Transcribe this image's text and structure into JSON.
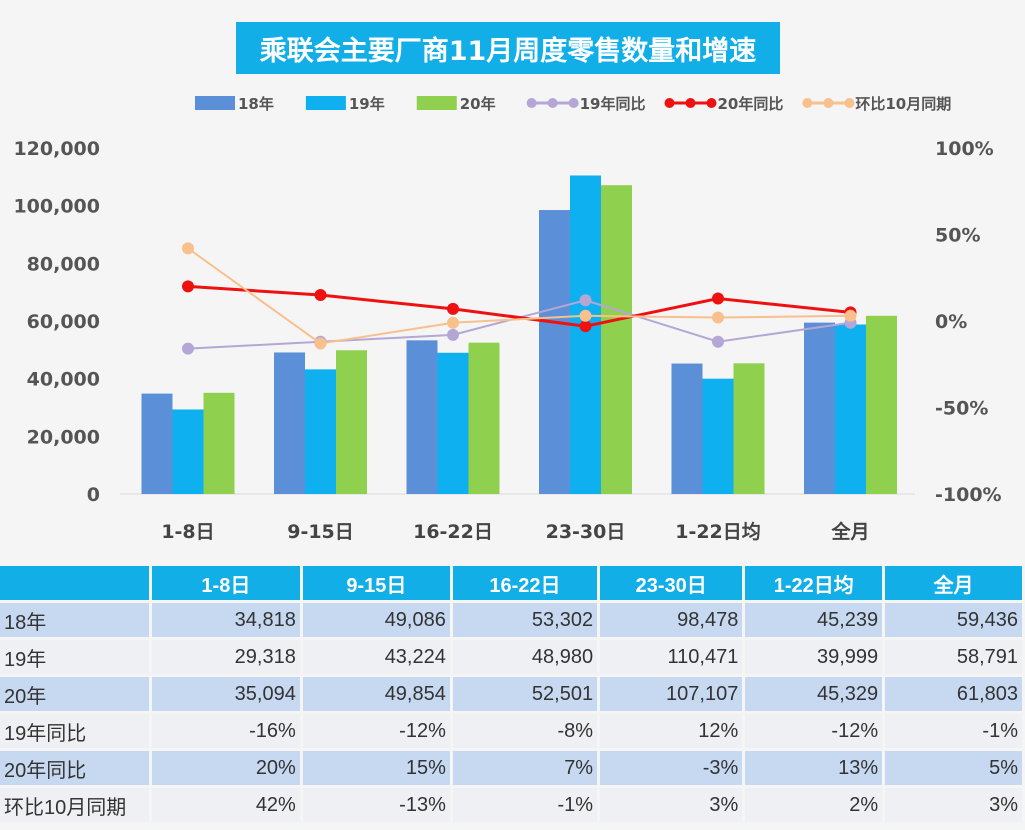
{
  "chart_data": {
    "type": "bar",
    "title": "乘联会主要厂商11月周度零售数量和增速",
    "categories": [
      "1-8日",
      "9-15日",
      "16-22日",
      "23-30日",
      "1-22日均",
      "全月"
    ],
    "series": [
      {
        "name": "18年",
        "kind": "bar",
        "axis": "left",
        "color": "#5b8fd8",
        "values": [
          34818,
          49086,
          53302,
          98478,
          45239,
          59436
        ]
      },
      {
        "name": "19年",
        "kind": "bar",
        "axis": "left",
        "color": "#0fb0ef",
        "values": [
          29318,
          43224,
          48980,
          110471,
          39999,
          58791
        ]
      },
      {
        "name": "20年",
        "kind": "bar",
        "axis": "left",
        "color": "#8fd14f",
        "values": [
          35094,
          49854,
          52501,
          107107,
          45329,
          61803
        ]
      },
      {
        "name": "19年同比",
        "kind": "line",
        "axis": "right",
        "color": "#b4a7d6",
        "values": [
          -16,
          -12,
          -8,
          12,
          -12,
          -1
        ]
      },
      {
        "name": "20年同比",
        "kind": "line",
        "axis": "right",
        "color": "#ee1111",
        "values": [
          20,
          15,
          7,
          -3,
          13,
          5
        ]
      },
      {
        "name": "环比10月同期",
        "kind": "line",
        "axis": "right",
        "color": "#f8c08c",
        "values": [
          42,
          -13,
          -1,
          3,
          2,
          3
        ]
      }
    ],
    "y_left": {
      "range": [
        0,
        120000
      ],
      "ticks": [
        "0",
        "20,000",
        "40,000",
        "60,000",
        "80,000",
        "100,000",
        "120,000"
      ]
    },
    "y_right": {
      "range": [
        -100,
        100
      ],
      "ticks": [
        "-100%",
        "-50%",
        "0%",
        "50%",
        "100%"
      ]
    },
    "legend_placement": "top",
    "grid": false
  },
  "table": {
    "header": [
      "",
      "1-8日",
      "9-15日",
      "16-22日",
      "23-30日",
      "1-22日均",
      "全月"
    ],
    "rows": [
      [
        "18年",
        "34,818",
        "49,086",
        "53,302",
        "98,478",
        "45,239",
        "59,436"
      ],
      [
        "19年",
        "29,318",
        "43,224",
        "48,980",
        "110,471",
        "39,999",
        "58,791"
      ],
      [
        "20年",
        "35,094",
        "49,854",
        "52,501",
        "107,107",
        "45,329",
        "61,803"
      ],
      [
        "19年同比",
        "-16%",
        "-12%",
        "-8%",
        "12%",
        "-12%",
        "-1%"
      ],
      [
        "20年同比",
        "20%",
        "15%",
        "7%",
        "-3%",
        "13%",
        "5%"
      ],
      [
        "环比10月同期",
        "42%",
        "-13%",
        "-1%",
        "3%",
        "2%",
        "3%"
      ]
    ]
  }
}
